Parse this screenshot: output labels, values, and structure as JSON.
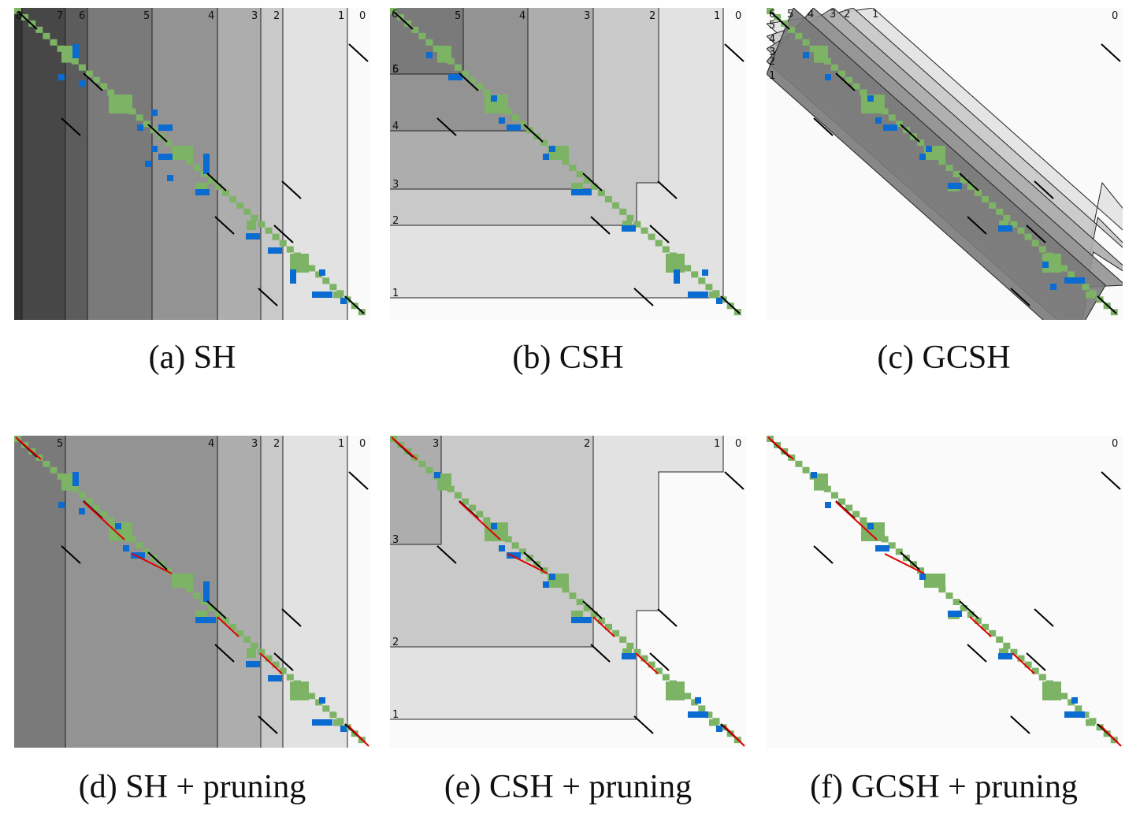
{
  "panels": [
    {
      "id": "a",
      "caption": "(a) SH",
      "type": "columns",
      "labels": [
        "8",
        "7",
        "6",
        "5",
        "4",
        "3",
        "2",
        "1",
        "0"
      ]
    },
    {
      "id": "b",
      "caption": "(b) CSH",
      "type": "staircase",
      "labels": [
        "6",
        "5",
        "4",
        "3",
        "2",
        "1",
        "0"
      ]
    },
    {
      "id": "c",
      "caption": "(c) GCSH",
      "type": "bands",
      "labels": [
        "6",
        "5",
        "4",
        "3",
        "2",
        "1",
        "0"
      ]
    },
    {
      "id": "d",
      "caption": "(d) SH + pruning",
      "type": "columns",
      "labels": [
        "5",
        "4",
        "3",
        "2",
        "1",
        "0"
      ]
    },
    {
      "id": "e",
      "caption": "(e) CSH + pruning",
      "type": "staircase",
      "labels": [
        "3",
        "2",
        "1",
        "0"
      ]
    },
    {
      "id": "f",
      "caption": "(f) GCSH + pruning",
      "type": "bands",
      "labels": [
        "0"
      ]
    }
  ],
  "colors": {
    "expanded": "#7db365",
    "explored": "#0a6bd1",
    "match": "#000000",
    "path": "#e00000",
    "background": "#fafafa"
  }
}
